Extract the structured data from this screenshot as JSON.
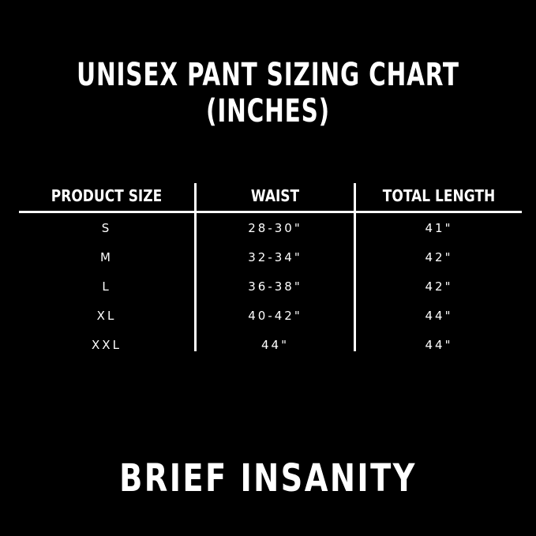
{
  "header": {
    "title": "UNISEX PANT SIZING CHART (INCHES)"
  },
  "table": {
    "columns": [
      "PRODUCT SIZE",
      "WAIST",
      "TOTAL LENGTH"
    ],
    "rows": [
      [
        "S",
        "28-30\"",
        "41\""
      ],
      [
        "M",
        "32-34\"",
        "42\""
      ],
      [
        "L",
        "36-38\"",
        "42\""
      ],
      [
        "XL",
        "40-42\"",
        "44\""
      ],
      [
        "XXL",
        "44\"",
        "44\""
      ]
    ]
  },
  "footer": {
    "brand": "BRIEF INSANITY"
  }
}
